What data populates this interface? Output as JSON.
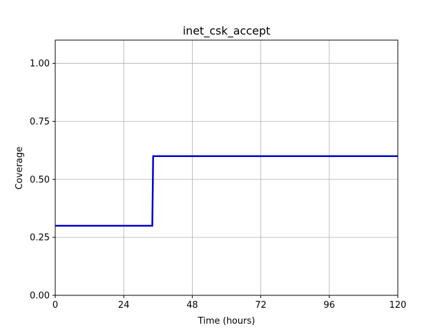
{
  "chart_data": {
    "type": "line",
    "title": "inet_csk_accept",
    "xlabel": "Time (hours)",
    "ylabel": "Coverage",
    "xlim": [
      0,
      120
    ],
    "ylim": [
      0,
      1.1
    ],
    "xticks": [
      0,
      24,
      48,
      72,
      96,
      120
    ],
    "xtick_labels": [
      "0",
      "24",
      "48",
      "72",
      "96",
      "120"
    ],
    "yticks": [
      0,
      0.25,
      0.5,
      0.75,
      1.0
    ],
    "ytick_labels": [
      "0.00",
      "0.25",
      "0.50",
      "0.75",
      "1.00"
    ],
    "grid": true,
    "series": [
      {
        "color": "#0000cc",
        "step": true,
        "x": [
          0,
          34,
          34.3,
          120
        ],
        "y": [
          0.3,
          0.3,
          0.6,
          0.6
        ]
      }
    ]
  }
}
